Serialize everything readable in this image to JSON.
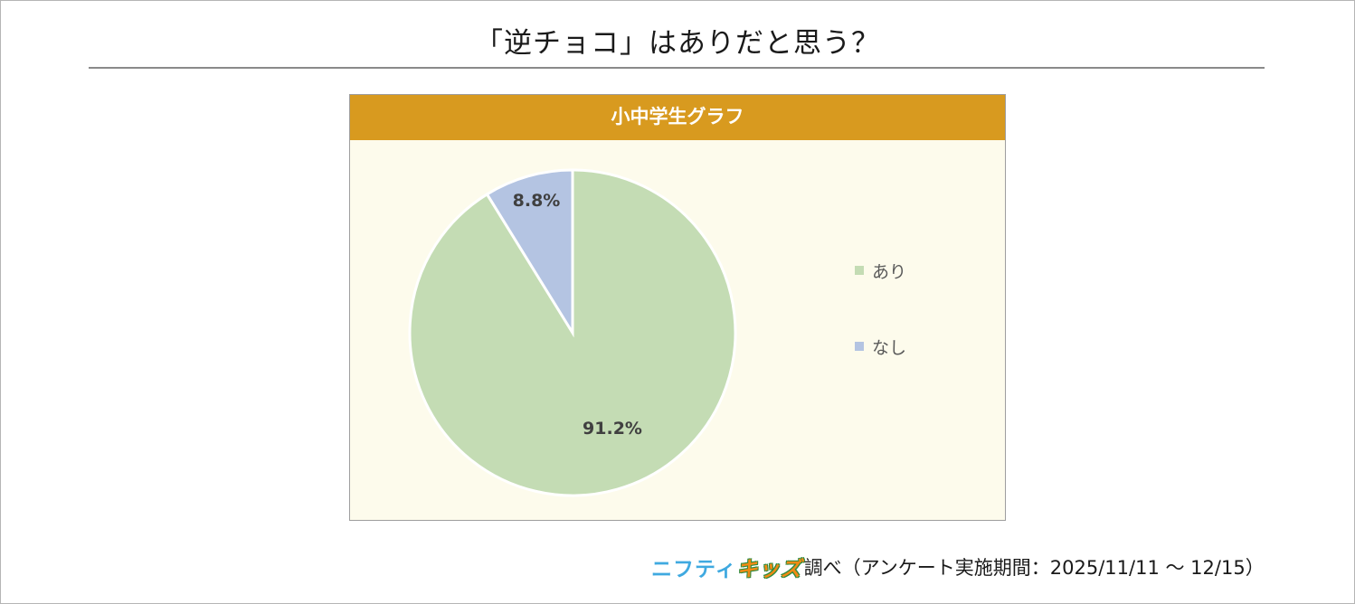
{
  "page": {
    "title": "「逆チョコ」はありだと思う？"
  },
  "chart_data": {
    "type": "pie",
    "title": "小中学生グラフ",
    "categories": [
      "あり",
      "なし"
    ],
    "values": [
      91.2,
      8.8
    ],
    "labels": [
      "91.2%",
      "8.8%"
    ],
    "colors": [
      "#c4dcb4",
      "#b4c4e2"
    ],
    "legend_position": "right",
    "header_color": "#d89a1f",
    "plot_background": "#fdfbec"
  },
  "footer": {
    "logo_nifty": "ニフティ",
    "logo_kids": "キッズ",
    "text": "調べ（アンケート実施期間：2025/11/11 ～ 12/15）"
  }
}
